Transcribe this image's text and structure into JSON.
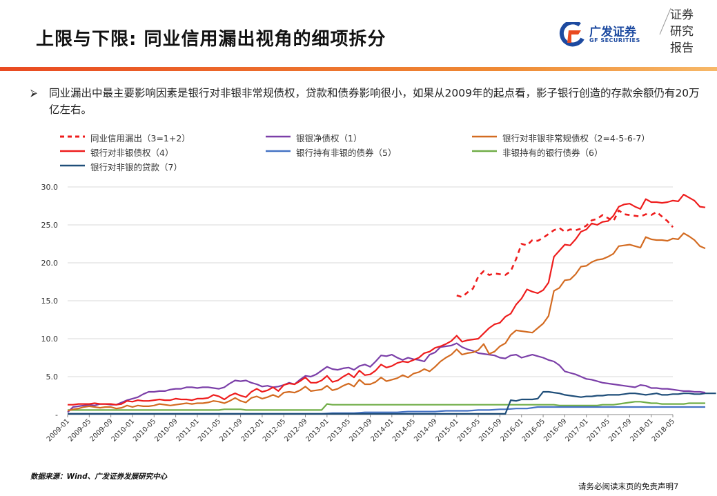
{
  "header": {
    "title": "上限与下限: 同业信用漏出视角的细项拆分",
    "logo_name": "广发证券",
    "logo_sub": "GF SECURITIES",
    "stamp": [
      "证券",
      "研究",
      "报告"
    ]
  },
  "summary": {
    "text": "同业漏出中最主要影响因素是银行对非银非常规债权，贷款和债券影响很小，如果从2009年的起点看，影子银行创造的存款余额仍有20万亿左右。"
  },
  "footer": {
    "source": "数据来源：Wind、广发证券发展研究中心",
    "disclaimer": "请务必阅读末页的免责声明",
    "page_number": "7"
  },
  "colors": {
    "accent_bar": "#e94a21",
    "brand_blue": "#1d4aa0"
  },
  "chart_data": {
    "type": "line",
    "xlabel": "",
    "ylabel": "",
    "ylim": [
      0,
      30
    ],
    "yticks": [
      "30.0",
      "25.0",
      "20.0",
      "15.0",
      "10.0",
      "5.0",
      "-"
    ],
    "xticks": [
      "2009-01",
      "2009-05",
      "2009-09",
      "2010-01",
      "2010-05",
      "2010-09",
      "2011-01",
      "2011-05",
      "2011-09",
      "2012-01",
      "2012-05",
      "2012-09",
      "2013-01",
      "2013-05",
      "2013-09",
      "2014-01",
      "2014-05",
      "2014-09",
      "2015-01",
      "2015-05",
      "2015-09",
      "2016-01",
      "2016-05",
      "2016-09",
      "2017-01",
      "2017-05",
      "2017-09",
      "2018-01",
      "2018-05"
    ],
    "x_start": "2009-01",
    "grid": "horizontal",
    "legend_position": "top",
    "series": [
      {
        "name": "同业信用漏出（3=1+2）",
        "color": "#ee1c1c",
        "dashed": true,
        "start": "2015-01",
        "values": [
          15.7,
          15.5,
          16.1,
          16.6,
          18.2,
          18.9,
          18.4,
          18.6,
          18.5,
          18.4,
          18.9,
          20.5,
          22.5,
          22.3,
          23.0,
          22.9,
          23.3,
          23.8,
          24.3,
          24.6,
          24.1,
          24.4,
          24.3,
          24.5,
          24.9,
          25.6,
          25.8,
          26.3,
          25.9,
          25.5,
          26.9,
          26.4,
          26.3,
          26.2,
          26.1,
          26.4,
          26.3,
          26.7,
          26.1,
          25.5,
          24.7
        ]
      },
      {
        "name": "银行对非银非常规债权（2=4-5-6-7）",
        "color": "#d36b21",
        "dashed": false,
        "start": "2009-01",
        "values": [
          0.5,
          0.7,
          0.8,
          1.0,
          1.1,
          1.0,
          0.9,
          1.0,
          1.0,
          0.8,
          0.9,
          1.2,
          1.0,
          1.2,
          1.1,
          1.1,
          1.2,
          1.4,
          1.3,
          1.2,
          1.3,
          1.4,
          1.5,
          1.4,
          1.5,
          1.5,
          1.6,
          1.8,
          1.7,
          1.5,
          1.8,
          2.2,
          1.8,
          1.6,
          2.2,
          2.4,
          2.1,
          2.3,
          2.6,
          2.3,
          2.9,
          3.0,
          2.9,
          3.2,
          3.7,
          3.1,
          3.2,
          3.3,
          3.8,
          3.2,
          3.4,
          3.8,
          4.1,
          3.7,
          4.6,
          4.0,
          4.0,
          4.3,
          4.9,
          4.4,
          4.6,
          4.8,
          5.2,
          4.9,
          5.4,
          5.6,
          6.0,
          5.7,
          6.3,
          7.0,
          7.5,
          7.9,
          8.6,
          7.9,
          8.1,
          8.2,
          8.5,
          9.3,
          8.0,
          8.3,
          9.0,
          9.4,
          10.5,
          11.1,
          11.0,
          10.9,
          10.8,
          11.4,
          12.0,
          13.0,
          16.3,
          16.7,
          17.7,
          17.8,
          18.5,
          19.5,
          19.6,
          20.1,
          20.4,
          20.5,
          20.8,
          21.2,
          22.2,
          22.3,
          22.4,
          22.2,
          22.0,
          23.4,
          23.1,
          23.0,
          23.0,
          22.9,
          23.2,
          23.1,
          23.9,
          23.5,
          23.0,
          22.2,
          21.9
        ]
      },
      {
        "name": "银行对非银债权（4）",
        "color": "#ee1c1c",
        "dashed": false,
        "start": "2009-01",
        "values": [
          1.3,
          1.3,
          1.4,
          1.4,
          1.4,
          1.5,
          1.4,
          1.4,
          1.4,
          1.3,
          1.4,
          1.8,
          1.7,
          1.9,
          1.8,
          1.8,
          1.9,
          2.0,
          1.9,
          1.9,
          2.1,
          2.0,
          2.0,
          1.9,
          2.1,
          2.1,
          2.2,
          2.6,
          2.4,
          2.0,
          2.5,
          2.8,
          2.5,
          2.3,
          3.0,
          3.4,
          3.0,
          3.2,
          3.6,
          3.1,
          3.9,
          4.1,
          4.0,
          4.4,
          4.9,
          4.2,
          4.2,
          4.5,
          5.1,
          4.3,
          4.5,
          5.0,
          5.4,
          4.9,
          5.8,
          5.2,
          5.3,
          5.8,
          6.6,
          6.2,
          6.4,
          6.8,
          7.0,
          6.9,
          7.2,
          7.5,
          8.1,
          8.3,
          8.8,
          9.0,
          9.3,
          9.7,
          10.4,
          9.6,
          9.8,
          9.9,
          10.0,
          10.7,
          11.4,
          11.9,
          12.1,
          12.9,
          13.3,
          14.5,
          15.3,
          16.5,
          16.2,
          16.0,
          16.4,
          17.4,
          20.8,
          21.6,
          22.4,
          22.3,
          23.1,
          24.1,
          24.4,
          25.2,
          25.0,
          25.4,
          25.5,
          26.2,
          27.4,
          27.7,
          27.8,
          27.4,
          27.1,
          28.4,
          28.0,
          28.0,
          27.9,
          28.0,
          28.2,
          28.1,
          29.0,
          28.6,
          28.2,
          27.4,
          27.3
        ]
      },
      {
        "name": "银银净债权（1）",
        "color": "#7b3fa8",
        "dashed": false,
        "start": "2009-01",
        "values": [
          0.3,
          1.0,
          1.1,
          1.2,
          1.3,
          1.2,
          1.4,
          1.4,
          1.3,
          1.3,
          1.6,
          1.9,
          2.1,
          2.3,
          2.7,
          3.0,
          3.0,
          3.1,
          3.1,
          3.3,
          3.4,
          3.4,
          3.6,
          3.6,
          3.5,
          3.6,
          3.6,
          3.5,
          3.4,
          3.6,
          4.1,
          4.5,
          4.4,
          4.5,
          4.2,
          4.0,
          3.7,
          3.8,
          3.6,
          3.7,
          3.9,
          4.2,
          4.0,
          4.6,
          5.1,
          5.0,
          5.3,
          5.8,
          6.3,
          6.0,
          5.9,
          6.1,
          6.2,
          5.9,
          6.4,
          6.6,
          6.3,
          7.0,
          7.8,
          7.7,
          7.9,
          7.5,
          7.2,
          7.5,
          7.3,
          7.2,
          7.0,
          7.9,
          8.2,
          8.9,
          9.0,
          9.1,
          9.4,
          8.9,
          8.6,
          8.4,
          8.1,
          8.0,
          7.9,
          7.8,
          7.5,
          7.4,
          7.8,
          7.9,
          7.5,
          7.7,
          7.9,
          7.7,
          7.5,
          7.2,
          7.0,
          6.5,
          5.7,
          5.5,
          5.3,
          5.0,
          4.7,
          4.6,
          4.4,
          4.2,
          4.1,
          4.0,
          3.9,
          3.8,
          3.7,
          3.6,
          3.9,
          3.8,
          3.5,
          3.5,
          3.4,
          3.4,
          3.3,
          3.2,
          3.1,
          3.1,
          3.0,
          3.0,
          2.9
        ]
      },
      {
        "name": "银行持有非银的债券（5）",
        "color": "#4472c4",
        "dashed": false,
        "start": "2009-01",
        "values": [
          0.1,
          0.1,
          0.1,
          0.1,
          0.1,
          0.1,
          0.1,
          0.1,
          0.1,
          0.1,
          0.1,
          0.1,
          0.1,
          0.1,
          0.1,
          0.1,
          0.1,
          0.1,
          0.1,
          0.1,
          0.1,
          0.1,
          0.1,
          0.1,
          0.1,
          0.1,
          0.1,
          0.1,
          0.1,
          0.1,
          0.1,
          0.1,
          0.1,
          0.1,
          0.1,
          0.1,
          0.1,
          0.1,
          0.1,
          0.1,
          0.1,
          0.1,
          0.1,
          0.1,
          0.1,
          0.1,
          0.1,
          0.1,
          0.15,
          0.2,
          0.2,
          0.2,
          0.2,
          0.2,
          0.25,
          0.3,
          0.3,
          0.3,
          0.3,
          0.3,
          0.3,
          0.3,
          0.35,
          0.4,
          0.4,
          0.4,
          0.4,
          0.4,
          0.4,
          0.45,
          0.5,
          0.5,
          0.5,
          0.5,
          0.5,
          0.55,
          0.6,
          0.6,
          0.6,
          0.65,
          0.7,
          0.7,
          0.75,
          0.8,
          0.8,
          0.8,
          0.9,
          1.0,
          1.0,
          1.0,
          1.0,
          1.0,
          1.0,
          1.0,
          1.0,
          1.0,
          1.0,
          1.0,
          1.0,
          1.0,
          1.0,
          1.0,
          1.0,
          1.0,
          1.0,
          1.0,
          1.0,
          1.0,
          1.0,
          1.0,
          1.0,
          1.0,
          1.0,
          1.0,
          1.0,
          1.0,
          1.0,
          1.0,
          1.0
        ]
      },
      {
        "name": "非银持有的银行债券（6）",
        "color": "#70ad47",
        "dashed": false,
        "start": "2009-01",
        "values": [
          0.6,
          0.6,
          0.6,
          0.6,
          0.6,
          0.6,
          0.6,
          0.6,
          0.6,
          0.6,
          0.6,
          0.6,
          0.6,
          0.6,
          0.6,
          0.6,
          0.6,
          0.6,
          0.6,
          0.6,
          0.6,
          0.6,
          0.6,
          0.6,
          0.6,
          0.6,
          0.6,
          0.6,
          0.6,
          0.7,
          0.7,
          0.7,
          0.7,
          0.6,
          0.6,
          0.6,
          0.6,
          0.6,
          0.6,
          0.6,
          0.6,
          0.6,
          0.6,
          0.6,
          0.6,
          0.6,
          0.6,
          0.6,
          1.4,
          1.3,
          1.3,
          1.3,
          1.3,
          1.3,
          1.3,
          1.3,
          1.3,
          1.3,
          1.3,
          1.3,
          1.3,
          1.3,
          1.3,
          1.3,
          1.3,
          1.3,
          1.3,
          1.3,
          1.3,
          1.3,
          1.3,
          1.3,
          1.3,
          1.3,
          1.3,
          1.3,
          1.3,
          1.3,
          1.3,
          1.3,
          1.3,
          1.3,
          1.3,
          1.3,
          1.3,
          1.3,
          1.3,
          1.3,
          1.3,
          1.3,
          1.3,
          1.2,
          1.2,
          1.2,
          1.2,
          1.2,
          1.2,
          1.2,
          1.2,
          1.3,
          1.3,
          1.3,
          1.4,
          1.5,
          1.6,
          1.7,
          1.7,
          1.6,
          1.5,
          1.5,
          1.4,
          1.4,
          1.4,
          1.4,
          1.4,
          1.5,
          1.5,
          1.5,
          1.5
        ]
      },
      {
        "name": "银行对非银的贷款（7）",
        "color": "#1f4e79",
        "dashed": false,
        "start": "2009-01",
        "values": [
          0.1,
          0.1,
          0.1,
          0.1,
          0.1,
          0.1,
          0.1,
          0.1,
          0.1,
          0.1,
          0.1,
          0.1,
          0.1,
          0.1,
          0.1,
          0.1,
          0.1,
          0.1,
          0.1,
          0.1,
          0.1,
          0.1,
          0.1,
          0.1,
          0.1,
          0.1,
          0.1,
          0.1,
          0.1,
          0.1,
          0.1,
          0.1,
          0.1,
          0.1,
          0.1,
          0.1,
          0.1,
          0.1,
          0.1,
          0.1,
          0.1,
          0.1,
          0.1,
          0.1,
          0.1,
          0.1,
          0.1,
          0.1,
          0.1,
          0.1,
          0.1,
          0.1,
          0.1,
          0.1,
          0.1,
          0.1,
          0.1,
          0.1,
          0.1,
          0.1,
          0.1,
          0.1,
          0.1,
          0.1,
          0.1,
          0.1,
          0.1,
          0.1,
          0.1,
          0.1,
          0.1,
          0.1,
          0.1,
          0.1,
          0.1,
          0.1,
          0.1,
          0.1,
          0.1,
          0.1,
          0.1,
          0.1,
          1.9,
          1.8,
          2.0,
          2.0,
          2.0,
          2.1,
          3.0,
          3.0,
          2.9,
          2.8,
          2.6,
          2.5,
          2.4,
          2.3,
          2.4,
          2.4,
          2.5,
          2.5,
          2.6,
          2.6,
          2.6,
          2.7,
          2.8,
          2.8,
          2.7,
          2.6,
          2.7,
          2.8,
          2.6,
          2.6,
          2.7,
          2.7,
          2.8,
          2.8,
          2.7,
          2.7,
          2.8,
          2.8,
          2.8
        ]
      }
    ]
  }
}
